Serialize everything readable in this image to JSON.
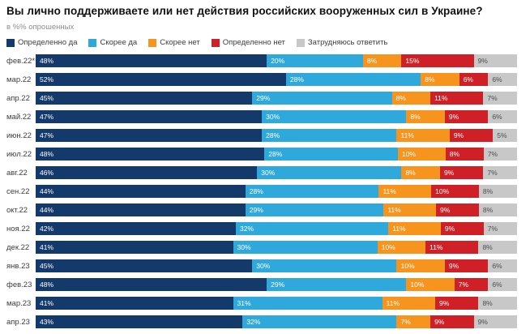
{
  "header": {
    "title": "Вы лично поддерживаете или нет действия российских вооруженных сил в Украине?",
    "subtitle": "в %% опрошенных"
  },
  "chart_data": {
    "type": "bar",
    "stacked": true,
    "orientation": "horizontal",
    "unit": "%",
    "xlim": [
      0,
      100
    ],
    "legend_position": "top",
    "grid": false,
    "categories": [
      "фев.22*",
      "мар.22",
      "апр.22",
      "май.22",
      "июн.22",
      "июл.22",
      "авг.22",
      "сен.22",
      "окт.22",
      "ноя.22",
      "дек.22",
      "янв.23",
      "фев.23",
      "мар.23",
      "апр.23"
    ],
    "series": [
      {
        "name": "Определенно да",
        "color": "#143a6b",
        "label_color": "#ffffff",
        "values": [
          48,
          52,
          45,
          47,
          47,
          48,
          46,
          44,
          44,
          42,
          41,
          45,
          48,
          41,
          43
        ]
      },
      {
        "name": "Скорее да",
        "color": "#2fa8db",
        "label_color": "#ffffff",
        "values": [
          20,
          28,
          29,
          30,
          28,
          28,
          30,
          28,
          29,
          32,
          30,
          30,
          29,
          31,
          32
        ]
      },
      {
        "name": "Скорее нет",
        "color": "#f7941d",
        "label_color": "#ffffff",
        "values": [
          8,
          8,
          8,
          8,
          11,
          10,
          8,
          11,
          11,
          11,
          10,
          10,
          10,
          11,
          7
        ]
      },
      {
        "name": "Определенно нет",
        "color": "#ce2026",
        "label_color": "#ffffff",
        "values": [
          15,
          6,
          11,
          9,
          9,
          8,
          9,
          10,
          9,
          9,
          11,
          9,
          7,
          9,
          9
        ]
      },
      {
        "name": "Затрудняюсь ответить",
        "color": "#c8c8c8",
        "label_color": "#4d4d4d",
        "values": [
          9,
          6,
          7,
          6,
          5,
          7,
          7,
          8,
          8,
          7,
          8,
          6,
          6,
          8,
          9
        ]
      }
    ]
  }
}
